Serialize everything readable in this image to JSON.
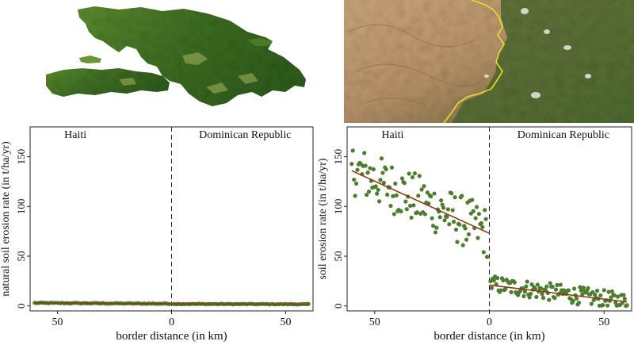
{
  "figure": {
    "background": "#ffffff",
    "map_island": {
      "land_dark": "#2f5d1c",
      "land_mid": "#4f7f2a",
      "land_light": "#9caa55"
    },
    "satellite": {
      "terrain_light": "#c7a579",
      "terrain_dark": "#9a7650",
      "forest": "#3c5a26",
      "border_line": "#e7e02a"
    }
  },
  "chart_data": [
    {
      "type": "scatter",
      "title": "",
      "xlabel": "border distance (in km)",
      "ylabel": "natural soil erosion rate (in t/ha/yr)",
      "xlim": [
        -62,
        62
      ],
      "ylim": [
        -5,
        180
      ],
      "xticks": [
        -50,
        0,
        50
      ],
      "xtick_labels": [
        "50",
        "0",
        "50"
      ],
      "yticks": [
        0,
        50,
        100,
        150
      ],
      "side_labels": {
        "left": "Haiti",
        "right": "Dominican Republic"
      },
      "cutoff": 0,
      "point_color": "#4e7c31",
      "line_color": "#8b3a12",
      "series": [
        {
          "side": "left",
          "x_start": -60,
          "x_end": -1,
          "step": 1,
          "y_start": 3.0,
          "y_end": 2.2,
          "noise": 0.4
        },
        {
          "side": "right",
          "x_start": 1,
          "x_end": 60,
          "step": 1,
          "y_start": 2.0,
          "y_end": 1.7,
          "noise": 0.3
        }
      ],
      "fit_lines": [
        {
          "x": [
            -60,
            0
          ],
          "y": [
            3.0,
            2.2
          ]
        },
        {
          "x": [
            0,
            60
          ],
          "y": [
            2.0,
            1.7
          ]
        }
      ]
    },
    {
      "type": "scatter",
      "title": "",
      "xlabel": "border distance (in km)",
      "ylabel": "soil erosion rate (in t/ha/yr)",
      "xlim": [
        -62,
        62
      ],
      "ylim": [
        -5,
        180
      ],
      "xticks": [
        -50,
        0,
        50
      ],
      "xtick_labels": [
        "50",
        "0",
        "50"
      ],
      "yticks": [
        0,
        50,
        100,
        150
      ],
      "side_labels": {
        "left": "Haiti",
        "right": "Dominican Republic"
      },
      "cutoff": 0,
      "point_color": "#4e7c31",
      "line_color": "#8b3a12",
      "series": [
        {
          "side": "left",
          "x_start": -60,
          "x_end": -1,
          "step": 0.5,
          "y_start": 138,
          "y_end": 74,
          "noise": 26
        },
        {
          "side": "right",
          "x_start": 0.5,
          "x_end": 60,
          "step": 0.5,
          "y_start": 22,
          "y_end": 4,
          "noise": 9
        }
      ],
      "fit_lines": [
        {
          "x": [
            -60,
            0
          ],
          "y": [
            136,
            73
          ]
        },
        {
          "x": [
            0,
            60
          ],
          "y": [
            21,
            4
          ]
        }
      ]
    }
  ]
}
